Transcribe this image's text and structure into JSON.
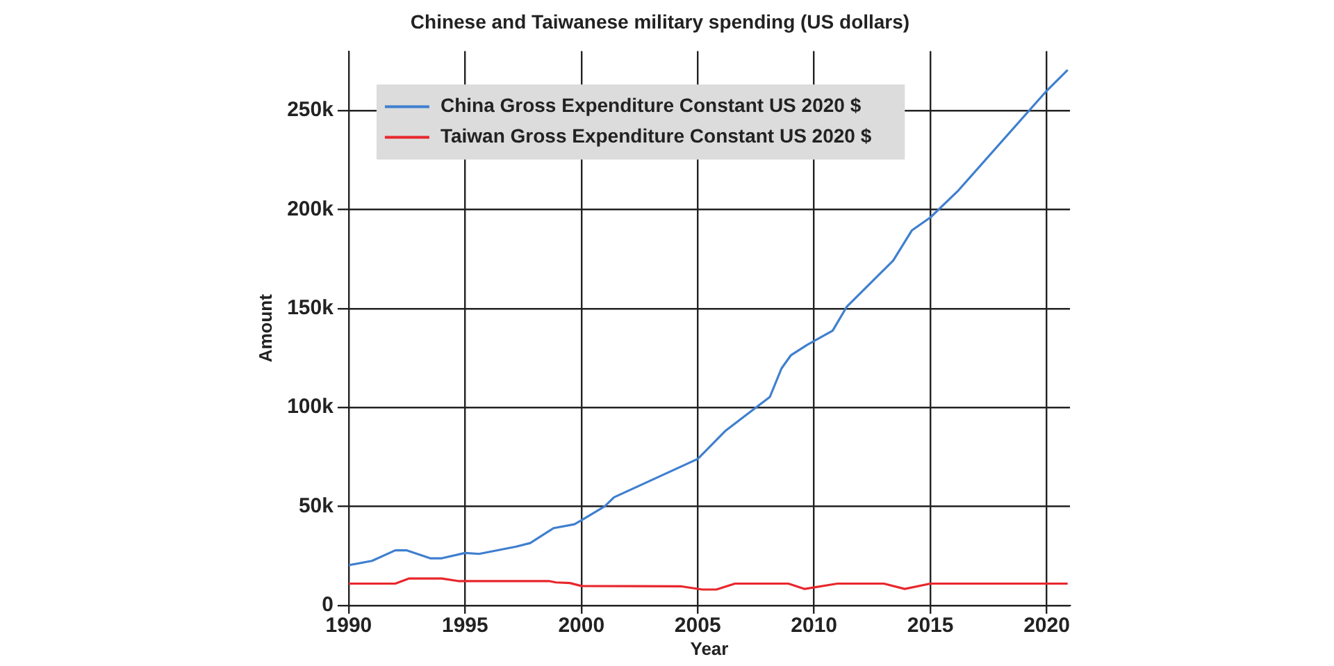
{
  "chart_data": {
    "type": "line",
    "title": "Chinese and Taiwanese military spending (US dollars)",
    "xlabel": "Year",
    "ylabel": "Amount",
    "xlim": [
      1990,
      2021
    ],
    "xticks": [
      1990,
      1995,
      2000,
      2005,
      2010,
      2015,
      2020
    ],
    "ylim": [
      0,
      280000
    ],
    "yticks": [
      {
        "value": 0,
        "label": "0"
      },
      {
        "value": 50000,
        "label": "50k"
      },
      {
        "value": 100000,
        "label": "100k"
      },
      {
        "value": 150000,
        "label": "150k"
      },
      {
        "value": 200000,
        "label": "200k"
      },
      {
        "value": 250000,
        "label": "250k"
      }
    ],
    "grid": true,
    "legend": "top left",
    "marker": "none",
    "line_style": "solid",
    "series": [
      {
        "name": "China Gross Expenditure Constant US 2020 $",
        "color": "#3f7fcf",
        "x": [
          1990,
          1991,
          1992,
          1992.5,
          1993.5,
          1994,
          1995,
          1995.6,
          1997.2,
          1997.8,
          1998.8,
          1999.7,
          2000,
          2001,
          2001.4,
          2005,
          2006.2,
          2007,
          2008.1,
          2008.6,
          2009,
          2009.7,
          2010.8,
          2011.4,
          2013.4,
          2014.2,
          2015,
          2016.2,
          2020,
          2020.9
        ],
        "values": [
          20300,
          22500,
          27800,
          27800,
          23800,
          23800,
          26500,
          26000,
          29700,
          31500,
          39000,
          41000,
          43000,
          50000,
          54600,
          74000,
          88300,
          95500,
          105300,
          119700,
          126300,
          131600,
          138800,
          150800,
          174200,
          189400,
          196000,
          209600,
          260000,
          270500
        ]
      },
      {
        "name": "Taiwan Gross Expenditure Constant US 2020 $",
        "color": "#e8262c",
        "x": [
          1990,
          1992,
          1992.6,
          1994,
          1994.7,
          1998.6,
          1998.9,
          1999.5,
          2000,
          2004.3,
          2005.2,
          2005.8,
          2006.6,
          2008.9,
          2009.6,
          2011,
          2013,
          2013.9,
          2015,
          2020.9
        ],
        "values": [
          11000,
          11000,
          13600,
          13600,
          12300,
          12300,
          11600,
          11300,
          9800,
          9600,
          8000,
          8000,
          11000,
          11000,
          8300,
          11000,
          11000,
          8300,
          11000,
          11000
        ]
      }
    ]
  }
}
